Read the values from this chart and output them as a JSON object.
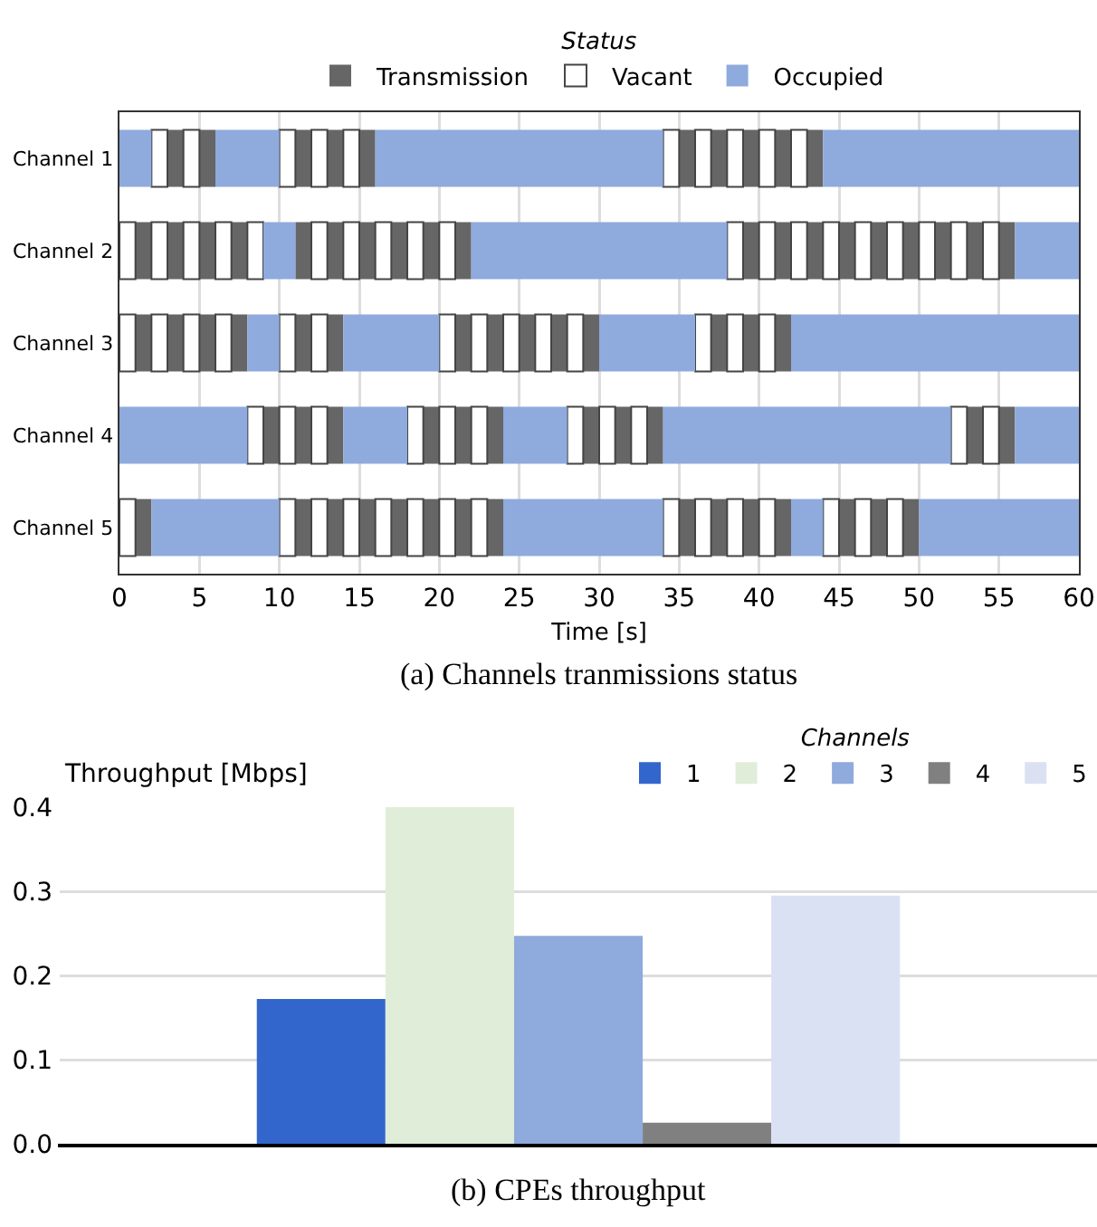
{
  "chart_data": [
    {
      "type": "bar",
      "orientation": "horizontal",
      "categories": [
        "Channel 1",
        "Channel 2",
        "Channel 3",
        "Channel 4",
        "Channel 5"
      ],
      "xlabel": "Time [s]",
      "xlim": [
        0,
        60
      ],
      "xticks": [
        0,
        5,
        10,
        15,
        20,
        25,
        30,
        35,
        40,
        45,
        50,
        55,
        60
      ],
      "grid": "x",
      "legend": "top",
      "legend_title": "Status",
      "annotations": [
        "(a) Channels tranmissions status"
      ],
      "series": [
        {
          "name": "Transmission",
          "color": "#666666",
          "base": [
            3,
            1,
            1,
            9,
            1
          ],
          "values": [
            1,
            1,
            1,
            1,
            1
          ]
        },
        {
          "color": "#666666",
          "base": [
            5,
            3,
            3,
            11,
            11
          ],
          "values": [
            1,
            1,
            1,
            1,
            1
          ]
        },
        {
          "color": "#666666",
          "base": [
            11,
            5,
            5,
            13,
            13
          ],
          "values": [
            1,
            1,
            1,
            1,
            1
          ]
        },
        {
          "color": "#666666",
          "base": [
            13,
            7,
            7,
            19,
            15
          ],
          "values": [
            1,
            1,
            1,
            1,
            1
          ]
        },
        {
          "color": "#666666",
          "base": [
            15,
            11,
            11,
            21,
            17
          ],
          "values": [
            1,
            1,
            1,
            1,
            1
          ]
        },
        {
          "color": "#666666",
          "base": [
            35,
            13,
            13,
            23,
            19
          ],
          "values": [
            1,
            1,
            1,
            1,
            1
          ]
        },
        {
          "color": "#666666",
          "base": [
            37,
            15,
            21,
            29,
            21
          ],
          "values": [
            1,
            1,
            1,
            1,
            1
          ]
        },
        {
          "color": "#666666",
          "base": [
            39,
            17,
            23,
            31,
            23
          ],
          "values": [
            1,
            1,
            1,
            1,
            1
          ]
        },
        {
          "color": "#666666",
          "base": [
            41,
            19,
            25,
            33,
            35
          ],
          "values": [
            1,
            1,
            1,
            1,
            1
          ]
        },
        {
          "color": "#666666",
          "base": [
            43,
            21,
            27,
            53,
            37
          ],
          "values": [
            1,
            1,
            1,
            1,
            1
          ]
        },
        {
          "color": "#666666",
          "base": [
            null,
            39,
            29,
            55,
            39
          ],
          "values": [
            null,
            1,
            1,
            1,
            1
          ]
        },
        {
          "color": "#666666",
          "base": [
            null,
            41,
            37,
            null,
            41
          ],
          "values": [
            null,
            1,
            1,
            null,
            1
          ]
        },
        {
          "color": "#666666",
          "base": [
            null,
            43,
            39,
            null,
            45
          ],
          "values": [
            null,
            1,
            1,
            null,
            1
          ]
        },
        {
          "color": "#666666",
          "base": [
            null,
            45,
            41,
            null,
            47
          ],
          "values": [
            null,
            1,
            1,
            null,
            1
          ]
        },
        {
          "color": "#666666",
          "base": [
            null,
            47,
            null,
            null,
            49
          ],
          "values": [
            null,
            1,
            null,
            null,
            1
          ]
        },
        {
          "color": "#666666",
          "base": [
            null,
            49,
            null,
            null,
            null
          ],
          "values": [
            null,
            1,
            null,
            null,
            null
          ]
        },
        {
          "color": "#666666",
          "base": [
            null,
            51,
            null,
            null,
            null
          ],
          "values": [
            null,
            1,
            null,
            null,
            null
          ]
        },
        {
          "color": "#666666",
          "base": [
            null,
            53,
            null,
            null,
            null
          ],
          "values": [
            null,
            1,
            null,
            null,
            null
          ]
        },
        {
          "color": "#666666",
          "base": [
            null,
            55,
            null,
            null,
            null
          ],
          "values": [
            null,
            1,
            null,
            null,
            null
          ]
        },
        {
          "name": "Vacant",
          "color": "#ffffff",
          "base": [
            2,
            0,
            0,
            8,
            0
          ],
          "values": [
            1,
            1,
            1,
            1,
            1
          ]
        },
        {
          "color": "#ffffff",
          "base": [
            4,
            2,
            2,
            10,
            10
          ],
          "values": [
            1,
            1,
            1,
            1,
            1
          ]
        },
        {
          "color": "#ffffff",
          "base": [
            10,
            4,
            4,
            12,
            12
          ],
          "values": [
            1,
            1,
            1,
            1,
            1
          ]
        },
        {
          "color": "#ffffff",
          "base": [
            12,
            6,
            6,
            18,
            14
          ],
          "values": [
            1,
            1,
            1,
            1,
            1
          ]
        },
        {
          "color": "#ffffff",
          "base": [
            14,
            8,
            10,
            20,
            16
          ],
          "values": [
            1,
            1,
            1,
            1,
            1
          ]
        },
        {
          "color": "#ffffff",
          "base": [
            34,
            12,
            12,
            22,
            18
          ],
          "values": [
            1,
            1,
            1,
            1,
            1
          ]
        },
        {
          "color": "#ffffff",
          "base": [
            36,
            14,
            20,
            28,
            20
          ],
          "values": [
            1,
            1,
            1,
            1,
            1
          ]
        },
        {
          "color": "#ffffff",
          "base": [
            38,
            16,
            22,
            30,
            22
          ],
          "values": [
            1,
            1,
            1,
            1,
            1
          ]
        },
        {
          "color": "#ffffff",
          "base": [
            40,
            18,
            24,
            32,
            34
          ],
          "values": [
            1,
            1,
            1,
            1,
            1
          ]
        },
        {
          "color": "#ffffff",
          "base": [
            42,
            20,
            26,
            52,
            36
          ],
          "values": [
            1,
            1,
            1,
            1,
            1
          ]
        },
        {
          "color": "#ffffff",
          "base": [
            null,
            38,
            28,
            54,
            38
          ],
          "values": [
            null,
            1,
            1,
            1,
            1
          ]
        },
        {
          "color": "#ffffff",
          "base": [
            null,
            40,
            36,
            null,
            40
          ],
          "values": [
            null,
            1,
            1,
            null,
            1
          ]
        },
        {
          "color": "#ffffff",
          "base": [
            null,
            42,
            38,
            null,
            44
          ],
          "values": [
            null,
            1,
            1,
            null,
            1
          ]
        },
        {
          "color": "#ffffff",
          "base": [
            null,
            44,
            40,
            null,
            46
          ],
          "values": [
            null,
            1,
            1,
            null,
            1
          ]
        },
        {
          "color": "#ffffff",
          "base": [
            null,
            46,
            null,
            null,
            48
          ],
          "values": [
            null,
            1,
            null,
            null,
            1
          ]
        },
        {
          "color": "#ffffff",
          "base": [
            null,
            48,
            null,
            null,
            null
          ],
          "values": [
            null,
            1,
            null,
            null,
            null
          ]
        },
        {
          "color": "#ffffff",
          "base": [
            null,
            50,
            null,
            null,
            null
          ],
          "values": [
            null,
            1,
            null,
            null,
            null
          ]
        },
        {
          "color": "#ffffff",
          "base": [
            null,
            52,
            null,
            null,
            null
          ],
          "values": [
            null,
            1,
            null,
            null,
            null
          ]
        },
        {
          "color": "#ffffff",
          "base": [
            null,
            54,
            null,
            null,
            null
          ],
          "values": [
            null,
            1,
            null,
            null,
            null
          ]
        },
        {
          "name": "Occupied",
          "color": "#8faadc",
          "base": [
            0,
            9,
            8,
            0,
            2
          ],
          "values": [
            2,
            2,
            2,
            8,
            8
          ]
        },
        {
          "color": "#8faadc",
          "base": [
            6,
            22,
            14,
            14,
            24
          ],
          "values": [
            4,
            16,
            6,
            4,
            10
          ]
        },
        {
          "color": "#8faadc",
          "base": [
            16,
            56,
            30,
            24,
            42
          ],
          "values": [
            2,
            4,
            6,
            4,
            2
          ]
        },
        {
          "color": "#8faadc",
          "base": [
            18,
            null,
            42,
            34,
            50
          ],
          "values": [
            16,
            null,
            18,
            18,
            10
          ]
        },
        {
          "color": "#8faadc",
          "base": [
            44,
            null,
            null,
            56,
            null
          ],
          "values": [
            16,
            null,
            null,
            4,
            null
          ]
        }
      ]
    },
    {
      "type": "bar",
      "categories": [
        null
      ],
      "ylabel": "Throughput [Mbps]",
      "ylim": [
        0,
        0.4
      ],
      "yticks": [
        {
          "value": 0,
          "label": "0.0"
        },
        {
          "value": 0.1,
          "label": "0.1"
        },
        {
          "value": 0.2,
          "label": "0.2"
        },
        {
          "value": 0.3,
          "label": "0.3"
        },
        {
          "value": 0.4,
          "label": "0.4"
        }
      ],
      "grid": "y",
      "legend": "top right",
      "legend_title": "Channels",
      "annotations": [
        "(b) CPEs throughput"
      ],
      "series": [
        {
          "name": "1",
          "color": "#3366cc",
          "values": [
            0.172
          ]
        },
        {
          "name": "2",
          "color": "#e0eed9",
          "values": [
            0.4
          ]
        },
        {
          "name": "3",
          "color": "#8faadc",
          "values": [
            0.247
          ]
        },
        {
          "name": "4",
          "color": "#808080",
          "values": [
            0.025
          ]
        },
        {
          "name": "5",
          "color": "#dae1f2",
          "values": [
            0.295
          ]
        }
      ]
    }
  ]
}
